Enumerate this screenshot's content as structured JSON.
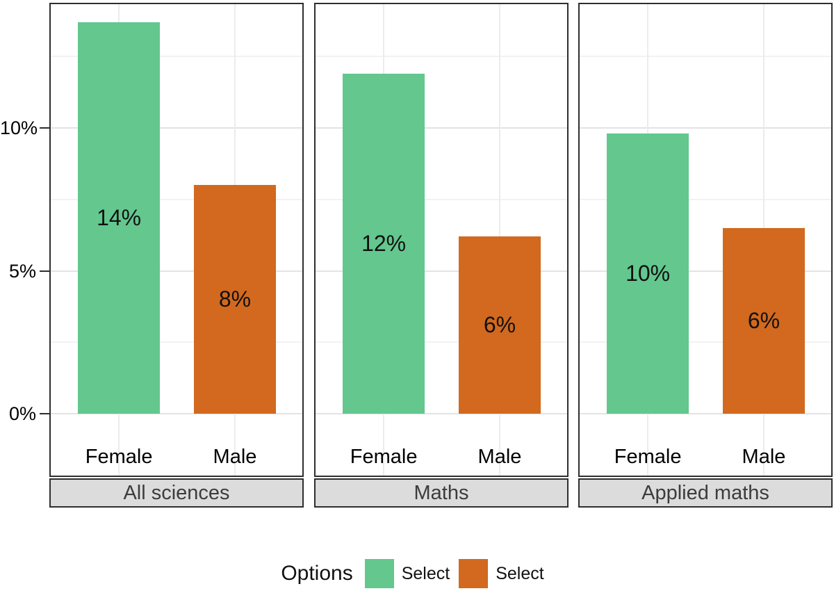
{
  "chart_data": {
    "type": "bar",
    "title": "",
    "xlabel": "",
    "ylabel": "",
    "y_ticks": [
      {
        "value": 0,
        "label": "0%"
      },
      {
        "value": 5,
        "label": "5%"
      },
      {
        "value": 10,
        "label": "10%"
      }
    ],
    "ylim": [
      -2.2,
      14.3
    ],
    "grid": {
      "major": [
        0,
        5,
        10
      ],
      "minor": [
        2.5,
        7.5,
        12.5
      ],
      "vertical_at_categories": true
    },
    "categories": [
      "Female",
      "Male"
    ],
    "series_colors": [
      "#63c78e",
      "#d2691e"
    ],
    "facets": [
      {
        "name": "All sciences",
        "bars": [
          {
            "category": "Female",
            "value": 13.7,
            "label": "14%"
          },
          {
            "category": "Male",
            "value": 8.0,
            "label": "8%"
          }
        ]
      },
      {
        "name": "Maths",
        "bars": [
          {
            "category": "Female",
            "value": 11.9,
            "label": "12%"
          },
          {
            "category": "Male",
            "value": 6.2,
            "label": "6%"
          }
        ]
      },
      {
        "name": "Applied maths",
        "bars": [
          {
            "category": "Female",
            "value": 9.8,
            "label": "10%"
          },
          {
            "category": "Male",
            "value": 6.5,
            "label": "6%"
          }
        ]
      }
    ],
    "legend": {
      "title": "Options",
      "position": "bottom",
      "entries": [
        {
          "label": "Select",
          "color": "#63c78e"
        },
        {
          "label": "Select",
          "color": "#d2691e"
        }
      ]
    }
  },
  "colors": {
    "background": "#ffffff",
    "panel_border": "#2e2e2e",
    "strip_background": "#dcdcdc",
    "strip_text": "#3c3c3c",
    "grid_major": "#e3e3e3",
    "grid_minor": "#f2f2f2",
    "grid_vertical": "#ececec",
    "axis_text": "#000000",
    "bar_label_text": "#111111"
  }
}
